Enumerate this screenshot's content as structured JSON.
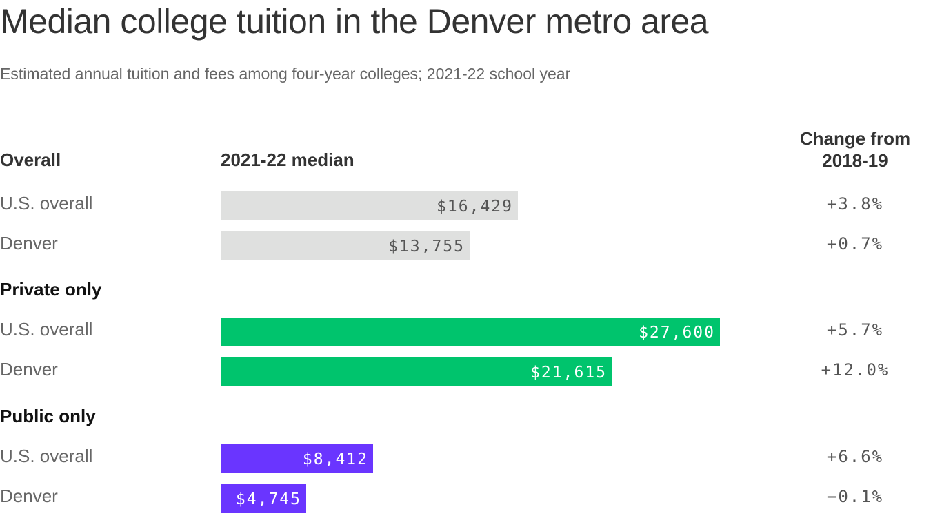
{
  "chart_data": {
    "type": "bar",
    "title": "Median college tuition in the Denver metro area",
    "subtitle": "Estimated annual tuition and fees among four-year colleges; 2021-22 school year",
    "column_headers": {
      "category": "Overall",
      "value": "2021-22 median",
      "change": "Change from 2018-19"
    },
    "xlim": [
      0,
      27600
    ],
    "groups": [
      {
        "name": "Overall",
        "color": "#dfe0df",
        "label_color": "#555555",
        "rows": [
          {
            "label": "U.S. overall",
            "value": 16429,
            "value_label": "$16,429",
            "change": "+3.8%"
          },
          {
            "label": "Denver",
            "value": 13755,
            "value_label": "$13,755",
            "change": "+0.7%"
          }
        ]
      },
      {
        "name": "Private only",
        "color": "#00c46d",
        "label_color": "#ffffff",
        "rows": [
          {
            "label": "U.S. overall",
            "value": 27600,
            "value_label": "$27,600",
            "change": "+5.7%"
          },
          {
            "label": "Denver",
            "value": 21615,
            "value_label": "$21,615",
            "change": "+12.0%"
          }
        ]
      },
      {
        "name": "Public only",
        "color": "#6a35ff",
        "label_color": "#ffffff",
        "rows": [
          {
            "label": "U.S. overall",
            "value": 8412,
            "value_label": "$8,412",
            "change": "+6.6%"
          },
          {
            "label": "Denver",
            "value": 4745,
            "value_label": "$4,745",
            "change": "−0.1%"
          }
        ]
      }
    ]
  }
}
